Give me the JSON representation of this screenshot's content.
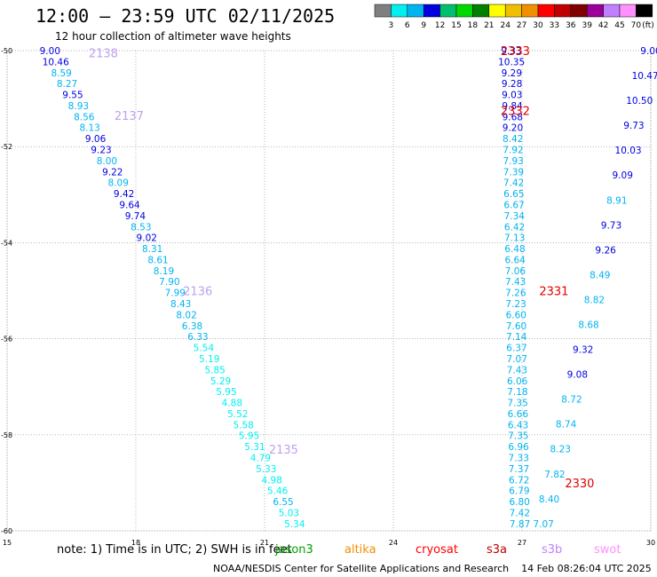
{
  "header": {
    "title": "12:00 — 23:59 UTC 02/11/2025",
    "subtitle": "12 hour collection of altimeter wave heights"
  },
  "legend": {
    "unit": "(ft)",
    "labels": [
      "3",
      "6",
      "9",
      "12",
      "15",
      "18",
      "21",
      "24",
      "27",
      "30",
      "33",
      "36",
      "39",
      "42",
      "45",
      "70"
    ],
    "colors": [
      "#7f7f7f",
      "#00f0f0",
      "#00b4f0",
      "#0000e0",
      "#00c070",
      "#00d800",
      "#008000",
      "#ffff00",
      "#f0c000",
      "#f09000",
      "#ff0000",
      "#c00000",
      "#800000",
      "#9b009b",
      "#c080ff",
      "#ff90ff",
      "#000000"
    ]
  },
  "footer": {
    "note": "note:  1) Time is in UTC;  2) SWH is in feet",
    "satellites": [
      {
        "name": "jason3",
        "color": "#00a000"
      },
      {
        "name": "altika",
        "color": "#f09000"
      },
      {
        "name": "cryosat",
        "color": "#ff0000"
      },
      {
        "name": "s3a",
        "color": "#c00000"
      },
      {
        "name": "s3b",
        "color": "#c080ff"
      },
      {
        "name": "swot",
        "color": "#ff90ff"
      }
    ],
    "credit": "NOAA/NESDIS Center for Satellite Applications and Research    14 Feb 08:26:04 UTC 2025"
  },
  "chart_data": {
    "type": "scatter",
    "title": "12:00 — 23:59 UTC 02/11/2025",
    "xlim": [
      15,
      30
    ],
    "ylim": [
      -60,
      -50
    ],
    "x_ticks": [
      15,
      18,
      21,
      24,
      27,
      30
    ],
    "y_ticks": [
      -50,
      -52,
      -54,
      -56,
      -58,
      -60
    ],
    "grid": true,
    "series": [
      {
        "name": "jason3",
        "x_start": 16.0,
        "x_end": 21.7,
        "values": [
          9.0,
          10.46,
          8.59,
          8.27,
          9.55,
          8.93,
          8.56,
          8.13,
          9.06,
          9.23,
          8.0,
          9.22,
          8.09,
          9.42,
          9.64,
          9.74,
          8.53,
          9.02,
          8.31,
          8.61,
          8.19,
          7.9,
          7.99,
          8.43,
          8.02,
          6.38,
          6.33,
          5.54,
          5.19,
          5.85,
          5.29,
          5.95,
          4.88,
          5.52,
          5.58,
          5.95,
          5.31,
          4.79,
          5.33,
          4.98,
          5.46,
          6.55,
          5.03,
          5.34
        ]
      },
      {
        "name": "jason3",
        "x_start": 26.75,
        "x_end": 26.95,
        "values": [
          9.33,
          10.35,
          9.29,
          9.28,
          9.03,
          9.84,
          9.68,
          9.2,
          8.42,
          7.92,
          7.93,
          7.39,
          7.42,
          6.65,
          6.67,
          7.34,
          6.42,
          7.13,
          6.48,
          6.64,
          7.06,
          7.43,
          7.26,
          7.23,
          6.6,
          7.6,
          7.14,
          6.37,
          7.07,
          7.43,
          6.06,
          7.18,
          7.35,
          6.66,
          6.43,
          7.35,
          6.96,
          7.33,
          7.37,
          6.72,
          6.79,
          6.8,
          7.42,
          7.87
        ]
      },
      {
        "name": "jason3",
        "x_start": 30.0,
        "x_end": 27.5,
        "values": [
          9.0,
          10.47,
          10.5,
          9.73,
          10.03,
          9.09,
          8.91,
          9.73,
          9.26,
          8.49,
          8.82,
          8.68,
          9.32,
          9.08,
          8.72,
          8.74,
          8.23,
          7.82,
          8.4,
          7.07
        ]
      }
    ],
    "track_labels": [
      {
        "text": "2138",
        "x": 16.9,
        "y": -50.05,
        "color": "#c0a0f0"
      },
      {
        "text": "2137",
        "x": 17.5,
        "y": -51.35,
        "color": "#c0a0f0"
      },
      {
        "text": "2136",
        "x": 19.1,
        "y": -55.0,
        "color": "#c0a0f0"
      },
      {
        "text": "2135",
        "x": 21.1,
        "y": -58.3,
        "color": "#c0a0f0"
      },
      {
        "text": "2333",
        "x": 26.5,
        "y": -50.0,
        "color": "#e00000"
      },
      {
        "text": "2332",
        "x": 26.5,
        "y": -51.25,
        "color": "#e00000"
      },
      {
        "text": "2331",
        "x": 27.4,
        "y": -55.0,
        "color": "#e00000"
      },
      {
        "text": "2330",
        "x": 28.0,
        "y": -59.0,
        "color": "#e00000"
      }
    ]
  }
}
